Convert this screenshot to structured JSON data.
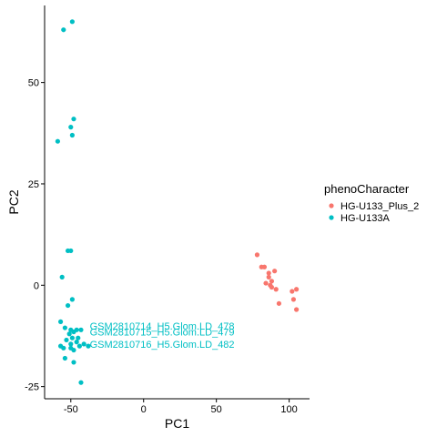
{
  "chart_data": {
    "type": "scatter",
    "title": "",
    "xlabel": "PC1",
    "ylabel": "PC2",
    "xlim": [
      -68,
      114
    ],
    "ylim": [
      -28,
      69
    ],
    "xticks": [
      -50,
      0,
      50,
      100
    ],
    "yticks": [
      -25,
      0,
      25,
      50
    ],
    "grid": false,
    "legend": {
      "title": "phenoCharacter",
      "placement": "right",
      "entries": [
        "HG-U133_Plus_2",
        "HG-U133A"
      ]
    },
    "series": [
      {
        "name": "HG-U133_Plus_2",
        "color": "#F8766D",
        "points": [
          [
            78,
            7.5
          ],
          [
            81,
            4.5
          ],
          [
            83,
            4.5
          ],
          [
            86,
            3
          ],
          [
            86,
            2
          ],
          [
            90,
            3.5
          ],
          [
            84,
            0.5
          ],
          [
            87,
            0
          ],
          [
            88,
            -0.5
          ],
          [
            88,
            1
          ],
          [
            91,
            -1
          ],
          [
            93,
            -4.5
          ],
          [
            102,
            -1.5
          ],
          [
            103,
            -3.5
          ],
          [
            105,
            -1
          ],
          [
            105,
            -6
          ]
        ]
      },
      {
        "name": "HG-U133A",
        "color": "#00BFC4",
        "points": [
          [
            -49,
            65
          ],
          [
            -55,
            63
          ],
          [
            -48,
            41
          ],
          [
            -50,
            39
          ],
          [
            -49,
            37
          ],
          [
            -59,
            35.5
          ],
          [
            -52,
            8.5
          ],
          [
            -50,
            8.5
          ],
          [
            -56,
            2
          ],
          [
            -49,
            -3.5
          ],
          [
            -52,
            -5
          ],
          [
            -57,
            -9
          ],
          [
            -54,
            -10.5
          ],
          [
            -50,
            -11
          ],
          [
            -48,
            -11.5
          ],
          [
            -46,
            -11
          ],
          [
            -43,
            -11
          ],
          [
            -51,
            -12
          ],
          [
            -49,
            -13
          ],
          [
            -45,
            -13
          ],
          [
            -53,
            -13.5
          ],
          [
            -50,
            -14.5
          ],
          [
            -46,
            -14
          ],
          [
            -41,
            -14.5
          ],
          [
            -57,
            -15
          ],
          [
            -55,
            -15.5
          ],
          [
            -50,
            -15.5
          ],
          [
            -48,
            -16
          ],
          [
            -44,
            -15
          ],
          [
            -38,
            -15
          ],
          [
            -54,
            -18
          ],
          [
            -48,
            -19
          ],
          [
            -43,
            -24
          ]
        ]
      }
    ],
    "annotations": [
      {
        "text": "GSM2810714_H5.Glom.LD_478",
        "x": -37,
        "y": -10,
        "series": "HG-U133A"
      },
      {
        "text": "GSM2810715_H5.Glom.LD_479",
        "x": -37,
        "y": -11.5,
        "series": "HG-U133A"
      },
      {
        "text": "GSM2810716_H5.Glom.LD_482",
        "x": -37,
        "y": -14.5,
        "series": "HG-U133A"
      }
    ]
  }
}
